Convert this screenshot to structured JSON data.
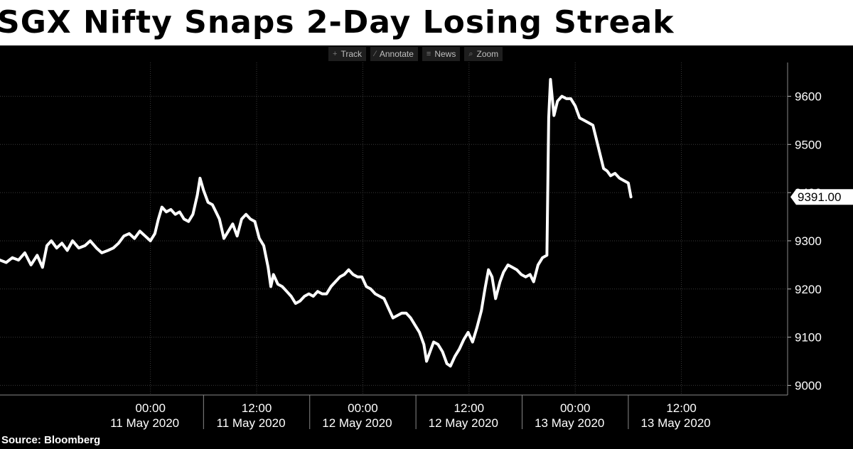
{
  "title": "SGX Nifty Snaps 2-Day Losing Streak",
  "toolbar": {
    "items": [
      {
        "label": "Track",
        "icon": "crosshair-icon"
      },
      {
        "label": "Annotate",
        "icon": "pencil-icon"
      },
      {
        "label": "News",
        "icon": "news-icon"
      },
      {
        "label": "Zoom",
        "icon": "zoom-icon"
      }
    ]
  },
  "source": "Source: Bloomberg",
  "colors": {
    "background": "#000000",
    "line": "#ffffff",
    "grid": "#3a3a3a",
    "title_bg": "#ffffff",
    "title_text": "#000000"
  },
  "chart_data": {
    "type": "line",
    "title": "SGX Nifty Snaps 2-Day Losing Streak",
    "xlabel": "",
    "ylabel": "",
    "ylim": [
      8980,
      9670
    ],
    "y_ticks": [
      9000,
      9100,
      9200,
      9300,
      9400,
      9500,
      9600
    ],
    "last_value_label": "9391.00",
    "last_value": 9391,
    "x_axis": {
      "hours_range": [
        -17,
        72
      ],
      "tick_labels": [
        {
          "time": "00:00",
          "date": "11 May 2020",
          "hours": 0
        },
        {
          "time": "12:00",
          "date": "11 May 2020",
          "hours": 12
        },
        {
          "time": "00:00",
          "date": "12 May 2020",
          "hours": 24
        },
        {
          "time": "12:00",
          "date": "12 May 2020",
          "hours": 36
        },
        {
          "time": "00:00",
          "date": "13 May 2020",
          "hours": 48
        },
        {
          "time": "12:00",
          "date": "13 May 2020",
          "hours": 60
        }
      ]
    },
    "series": [
      {
        "values": [
          [
            -17.0,
            9260
          ],
          [
            -16.3,
            9255
          ],
          [
            -15.6,
            9265
          ],
          [
            -14.9,
            9260
          ],
          [
            -14.2,
            9275
          ],
          [
            -13.5,
            9250
          ],
          [
            -12.8,
            9270
          ],
          [
            -12.2,
            9245
          ],
          [
            -11.7,
            9290
          ],
          [
            -11.2,
            9300
          ],
          [
            -10.6,
            9285
          ],
          [
            -10.0,
            9295
          ],
          [
            -9.4,
            9280
          ],
          [
            -8.8,
            9300
          ],
          [
            -8.1,
            9285
          ],
          [
            -7.4,
            9290
          ],
          [
            -6.8,
            9300
          ],
          [
            -6.1,
            9285
          ],
          [
            -5.5,
            9275
          ],
          [
            -4.8,
            9280
          ],
          [
            -4.2,
            9285
          ],
          [
            -3.6,
            9295
          ],
          [
            -3.0,
            9310
          ],
          [
            -2.4,
            9315
          ],
          [
            -1.8,
            9305
          ],
          [
            -1.2,
            9320
          ],
          [
            -0.6,
            9310
          ],
          [
            0.0,
            9300
          ],
          [
            0.5,
            9315
          ],
          [
            0.9,
            9345
          ],
          [
            1.3,
            9370
          ],
          [
            1.8,
            9360
          ],
          [
            2.3,
            9365
          ],
          [
            2.8,
            9355
          ],
          [
            3.3,
            9360
          ],
          [
            3.8,
            9345
          ],
          [
            4.3,
            9340
          ],
          [
            4.8,
            9355
          ],
          [
            5.3,
            9395
          ],
          [
            5.6,
            9430
          ],
          [
            6.0,
            9405
          ],
          [
            6.5,
            9380
          ],
          [
            7.0,
            9375
          ],
          [
            7.4,
            9360
          ],
          [
            7.8,
            9345
          ],
          [
            8.3,
            9305
          ],
          [
            8.8,
            9320
          ],
          [
            9.3,
            9335
          ],
          [
            9.8,
            9310
          ],
          [
            10.3,
            9345
          ],
          [
            10.8,
            9355
          ],
          [
            11.3,
            9345
          ],
          [
            11.8,
            9340
          ],
          [
            12.3,
            9305
          ],
          [
            12.8,
            9290
          ],
          [
            13.3,
            9245
          ],
          [
            13.6,
            9205
          ],
          [
            13.9,
            9230
          ],
          [
            14.4,
            9210
          ],
          [
            14.9,
            9205
          ],
          [
            15.4,
            9195
          ],
          [
            15.9,
            9185
          ],
          [
            16.4,
            9170
          ],
          [
            16.9,
            9175
          ],
          [
            17.4,
            9185
          ],
          [
            17.9,
            9190
          ],
          [
            18.4,
            9185
          ],
          [
            18.9,
            9195
          ],
          [
            19.4,
            9190
          ],
          [
            19.9,
            9190
          ],
          [
            20.4,
            9205
          ],
          [
            20.9,
            9215
          ],
          [
            21.4,
            9225
          ],
          [
            21.9,
            9230
          ],
          [
            22.4,
            9240
          ],
          [
            22.9,
            9230
          ],
          [
            23.4,
            9225
          ],
          [
            23.9,
            9225
          ],
          [
            24.4,
            9205
          ],
          [
            24.9,
            9200
          ],
          [
            25.4,
            9190
          ],
          [
            25.9,
            9185
          ],
          [
            26.4,
            9180
          ],
          [
            26.9,
            9160
          ],
          [
            27.4,
            9140
          ],
          [
            27.9,
            9145
          ],
          [
            28.4,
            9150
          ],
          [
            28.9,
            9150
          ],
          [
            29.4,
            9140
          ],
          [
            29.9,
            9125
          ],
          [
            30.4,
            9110
          ],
          [
            30.9,
            9085
          ],
          [
            31.2,
            9050
          ],
          [
            31.6,
            9070
          ],
          [
            32.0,
            9090
          ],
          [
            32.5,
            9085
          ],
          [
            33.0,
            9070
          ],
          [
            33.5,
            9045
          ],
          [
            33.9,
            9040
          ],
          [
            34.4,
            9060
          ],
          [
            34.9,
            9075
          ],
          [
            35.4,
            9095
          ],
          [
            35.9,
            9110
          ],
          [
            36.4,
            9090
          ],
          [
            36.9,
            9120
          ],
          [
            37.4,
            9155
          ],
          [
            37.8,
            9200
          ],
          [
            38.2,
            9240
          ],
          [
            38.6,
            9225
          ],
          [
            39.0,
            9180
          ],
          [
            39.5,
            9215
          ],
          [
            39.9,
            9235
          ],
          [
            40.4,
            9250
          ],
          [
            40.9,
            9245
          ],
          [
            41.4,
            9240
          ],
          [
            41.9,
            9230
          ],
          [
            42.4,
            9225
          ],
          [
            42.9,
            9230
          ],
          [
            43.3,
            9215
          ],
          [
            43.8,
            9250
          ],
          [
            44.3,
            9265
          ],
          [
            44.8,
            9270
          ],
          [
            45.0,
            9555
          ],
          [
            45.2,
            9635
          ],
          [
            45.6,
            9560
          ],
          [
            46.0,
            9590
          ],
          [
            46.5,
            9600
          ],
          [
            47.0,
            9595
          ],
          [
            47.5,
            9595
          ],
          [
            48.0,
            9580
          ],
          [
            48.5,
            9555
          ],
          [
            49.0,
            9550
          ],
          [
            49.5,
            9545
          ],
          [
            50.0,
            9540
          ],
          [
            50.4,
            9510
          ],
          [
            50.8,
            9480
          ],
          [
            51.2,
            9450
          ],
          [
            51.6,
            9445
          ],
          [
            52.0,
            9435
          ],
          [
            52.5,
            9440
          ],
          [
            53.0,
            9430
          ],
          [
            53.5,
            9425
          ],
          [
            54.0,
            9420
          ],
          [
            54.3,
            9391
          ]
        ]
      }
    ]
  }
}
